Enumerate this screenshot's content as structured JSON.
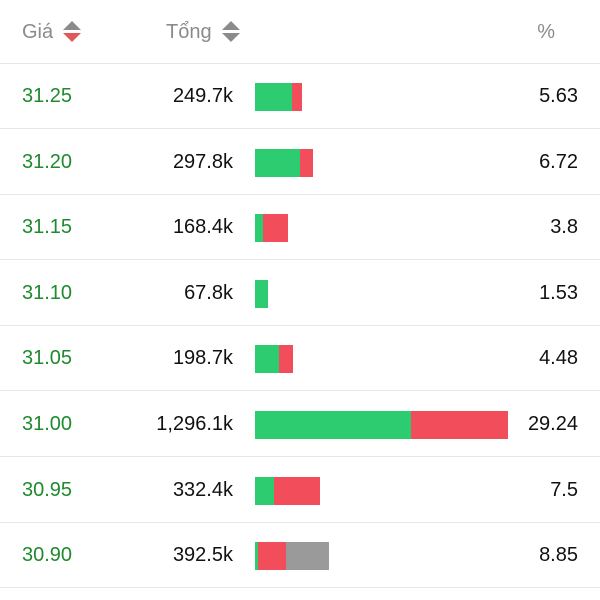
{
  "header": {
    "price_label": "Giá",
    "total_label": "Tổng",
    "percent_label": "%"
  },
  "colors": {
    "price_green": "#1f8a2e",
    "bar_green": "#2ecc71",
    "bar_red": "#f24d5b",
    "bar_gray": "#9a9a9a",
    "sort_active_red": "#e05a5a"
  },
  "rows": [
    {
      "price": "31.25",
      "total": "249.7k",
      "percent": "5.63",
      "bar_segments": [
        {
          "color": "green",
          "fraction": 0.145
        },
        {
          "color": "red",
          "fraction": 0.04
        }
      ]
    },
    {
      "price": "31.20",
      "total": "297.8k",
      "percent": "6.72",
      "bar_segments": [
        {
          "color": "green",
          "fraction": 0.175
        },
        {
          "color": "red",
          "fraction": 0.05
        }
      ]
    },
    {
      "price": "31.15",
      "total": "168.4k",
      "percent": "3.8",
      "bar_segments": [
        {
          "color": "green",
          "fraction": 0.03
        },
        {
          "color": "red",
          "fraction": 0.097
        }
      ]
    },
    {
      "price": "31.10",
      "total": "67.8k",
      "percent": "1.53",
      "bar_segments": [
        {
          "color": "green",
          "fraction": 0.051
        }
      ]
    },
    {
      "price": "31.05",
      "total": "198.7k",
      "percent": "4.48",
      "bar_segments": [
        {
          "color": "green",
          "fraction": 0.095
        },
        {
          "color": "red",
          "fraction": 0.055
        }
      ]
    },
    {
      "price": "31.00",
      "total": "1,296.1k",
      "percent": "29.24",
      "bar_segments": [
        {
          "color": "green",
          "fraction": 0.61
        },
        {
          "color": "red",
          "fraction": 0.381
        }
      ]
    },
    {
      "price": "30.95",
      "total": "332.4k",
      "percent": "7.5",
      "bar_segments": [
        {
          "color": "green",
          "fraction": 0.075
        },
        {
          "color": "red",
          "fraction": 0.18
        }
      ]
    },
    {
      "price": "30.90",
      "total": "392.5k",
      "percent": "8.85",
      "bar_segments": [
        {
          "color": "green",
          "fraction": 0.012
        },
        {
          "color": "red",
          "fraction": 0.11
        },
        {
          "color": "gray",
          "fraction": 0.17
        }
      ]
    }
  ]
}
